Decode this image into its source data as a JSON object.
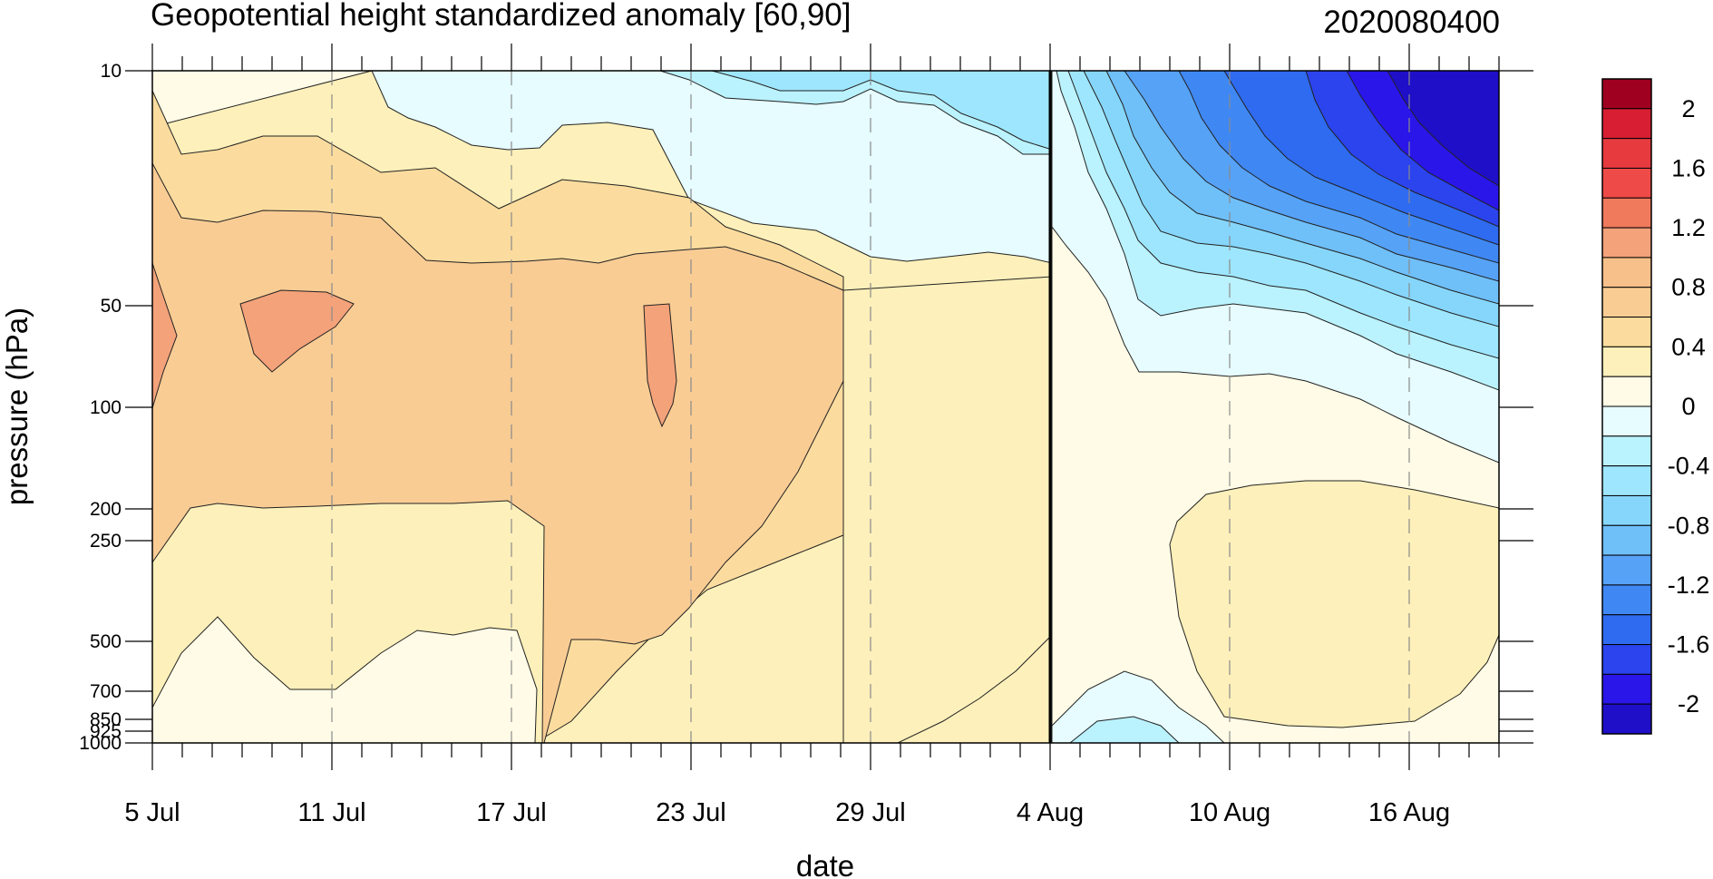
{
  "chart_data": {
    "type": "contour",
    "title": "Geopotential height standardized anomaly [60,90]",
    "subtitle": "2020080400",
    "xlabel": "date",
    "ylabel": "pressure (hPa)",
    "x_ticks": [
      "5 Jul",
      "11 Jul",
      "17 Jul",
      "23 Jul",
      "29 Jul",
      "4 Aug",
      "10 Aug",
      "16 Aug"
    ],
    "x_range": [
      "2020-07-05",
      "2020-08-19"
    ],
    "y_ticks": [
      10,
      50,
      100,
      200,
      250,
      500,
      700,
      850,
      925,
      1000
    ],
    "y_range": [
      10,
      1000
    ],
    "y_scale": "log-like, inverted",
    "analysis_date_line": "4 Aug",
    "grid": "dashed vertical lines at labeled dates",
    "colorbar": {
      "placement": "right",
      "labels": [
        "2",
        "1.6",
        "1.2",
        "0.8",
        "0.4",
        "0",
        "-0.4",
        "-0.8",
        "-1.2",
        "-1.6",
        "-2"
      ],
      "levels": [
        -2.2,
        -2.0,
        -1.8,
        -1.6,
        -1.4,
        -1.2,
        -1.0,
        -0.8,
        -0.6,
        -0.4,
        -0.2,
        0.0,
        0.2,
        0.4,
        0.6,
        0.8,
        1.0,
        1.2,
        1.4,
        1.6,
        1.8,
        2.0,
        2.2
      ],
      "colors": [
        "#1f0fc8",
        "#2a16e8",
        "#2b44ee",
        "#2f6bf0",
        "#3f88f4",
        "#56a2f7",
        "#6fbff9",
        "#86d6fb",
        "#9ee6fd",
        "#baf2fd",
        "#e6fcff",
        "#fffbe6",
        "#fdf0ba",
        "#fbdc9e",
        "#f9cc94",
        "#f7c08a",
        "#f4a27a",
        "#f07a5c",
        "#ee4a48",
        "#e63a3f",
        "#d81e32",
        "#a0001f"
      ]
    },
    "regions": [
      {
        "fill": "#fffbe6",
        "desc": "near-zero background"
      },
      {
        "fill": "#fdf0ba",
        "desc": "0.2-0.4 anomaly, lower troposphere"
      },
      {
        "fill": "#f9cc94",
        "desc": "0.6-0.8 anomaly, mid stratosphere July"
      },
      {
        "fill": "#f4a27a",
        "desc": ">1.0 anomaly patches near 50-100 hPa"
      },
      {
        "fill": "#e6fcff",
        "desc": "slightly negative upper stratosphere"
      },
      {
        "fill": "#86d6fb",
        "desc": "-0.8 anomaly late July"
      },
      {
        "fill": "#1f0fc8",
        "desc": "< -2 anomaly 10 hPa mid August"
      }
    ]
  }
}
